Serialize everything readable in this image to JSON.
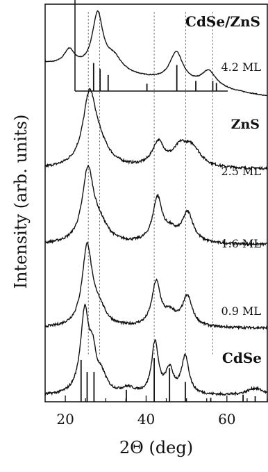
{
  "chart_data": {
    "type": "line",
    "xlabel": "2Θ (deg)",
    "ylabel": "Intensity (arb. units)",
    "xlim": [
      15,
      70
    ],
    "xticks": [
      20,
      40,
      60
    ],
    "ylim": [
      0,
      1
    ],
    "grid": false,
    "label_CdSeZnS": "CdSe/ZnS",
    "label_ZnS": "ZnS",
    "label_CdSe": "CdSe",
    "series": [
      {
        "name": "4.2 ML",
        "label": "4.2 ML",
        "offset": 0.85,
        "peaks": [
          {
            "x": 21,
            "h": 0.04,
            "w": 1.6
          },
          {
            "x": 28,
            "h": 0.14,
            "w": 1.6
          },
          {
            "x": 32,
            "h": 0.035,
            "w": 2.4
          },
          {
            "x": 47.5,
            "h": 0.075,
            "w": 2.0
          },
          {
            "x": 55.5,
            "h": 0.04,
            "w": 2.2
          }
        ],
        "sticks": [
          {
            "x": 27,
            "h": 0.07
          },
          {
            "x": 28.6,
            "h": 0.055
          },
          {
            "x": 30.6,
            "h": 0.04
          },
          {
            "x": 40.2,
            "h": 0.018
          },
          {
            "x": 47.6,
            "h": 0.065
          },
          {
            "x": 52.3,
            "h": 0.025
          },
          {
            "x": 56.5,
            "h": 0.025
          },
          {
            "x": 57.4,
            "h": 0.02
          }
        ]
      },
      {
        "name": "2.5 ML",
        "label": "2.5 ML",
        "offset": 0.585,
        "peaks": [
          {
            "x": 26,
            "h": 0.175,
            "w": 2.0
          },
          {
            "x": 28.5,
            "h": 0.04,
            "w": 3.0
          },
          {
            "x": 43,
            "h": 0.06,
            "w": 1.8
          },
          {
            "x": 48.5,
            "h": 0.045,
            "w": 2.2
          },
          {
            "x": 51.5,
            "h": 0.045,
            "w": 2.5
          }
        ]
      },
      {
        "name": "1.6 ML",
        "label": "1.6 ML",
        "offset": 0.395,
        "peaks": [
          {
            "x": 25.6,
            "h": 0.18,
            "w": 1.7
          },
          {
            "x": 28.5,
            "h": 0.04,
            "w": 2.5
          },
          {
            "x": 42.8,
            "h": 0.11,
            "w": 1.4
          },
          {
            "x": 46,
            "h": 0.025,
            "w": 2.0
          },
          {
            "x": 50.3,
            "h": 0.075,
            "w": 1.7
          }
        ]
      },
      {
        "name": "0.9 ML",
        "label": "0.9 ML",
        "offset": 0.185,
        "peaks": [
          {
            "x": 25.4,
            "h": 0.2,
            "w": 1.5
          },
          {
            "x": 28.3,
            "h": 0.04,
            "w": 2.0
          },
          {
            "x": 42.5,
            "h": 0.11,
            "w": 1.3
          },
          {
            "x": 46,
            "h": 0.03,
            "w": 1.8
          },
          {
            "x": 50.2,
            "h": 0.075,
            "w": 1.5
          }
        ]
      },
      {
        "name": "CdSe",
        "label": "CdSe",
        "offset": 0.015,
        "peaks": [
          {
            "x": 24.8,
            "h": 0.205,
            "w": 1.3
          },
          {
            "x": 26.8,
            "h": 0.08,
            "w": 1.0
          },
          {
            "x": 29,
            "h": 0.04,
            "w": 1.5
          },
          {
            "x": 35.5,
            "h": 0.015,
            "w": 2.0
          },
          {
            "x": 42.2,
            "h": 0.13,
            "w": 1.0
          },
          {
            "x": 45.8,
            "h": 0.06,
            "w": 1.2
          },
          {
            "x": 49.7,
            "h": 0.095,
            "w": 1.1
          },
          {
            "x": 67,
            "h": 0.018,
            "w": 2.5
          }
        ],
        "sticks": [
          {
            "x": 23.9,
            "h": 0.105
          },
          {
            "x": 25.4,
            "h": 0.075
          },
          {
            "x": 27.1,
            "h": 0.075
          },
          {
            "x": 35.1,
            "h": 0.03
          },
          {
            "x": 42,
            "h": 0.11
          },
          {
            "x": 45.8,
            "h": 0.085
          },
          {
            "x": 49.7,
            "h": 0.05
          },
          {
            "x": 56,
            "h": 0.01
          },
          {
            "x": 64,
            "h": 0.018
          },
          {
            "x": 67,
            "h": 0.014
          }
        ]
      }
    ],
    "reference_lines": [
      25.7,
      28.5,
      42,
      49.8,
      56.5
    ]
  }
}
